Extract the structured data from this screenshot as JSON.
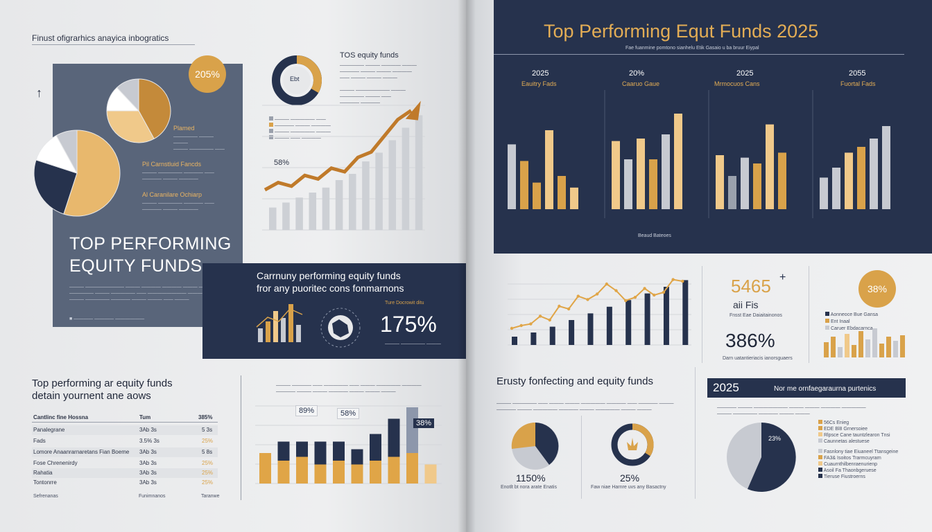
{
  "left_page": {
    "header_text": "Finust ofigrarhics anayica inbogratics",
    "hero": {
      "badge": "205%",
      "title_line1": "TOP PERFORMING",
      "title_line2": "EQUITY FUNDS",
      "legend": [
        {
          "label": "Plamed",
          "color": "#d9a24a"
        },
        {
          "label": "Pil Carnstluid Fancds",
          "color": "#d9a24a"
        },
        {
          "label": "Al Caranilare Ochiarp",
          "color": "#d9a24a"
        }
      ],
      "pie_small": [
        0.42,
        0.33,
        0.13,
        0.12
      ],
      "pie_large": [
        0.55,
        0.25,
        0.12,
        0.08
      ]
    },
    "donut_label": "Ebt",
    "trend_title": "TOS equity funds",
    "trend_percent": "58%",
    "trend_bars": [
      18,
      22,
      26,
      30,
      34,
      40,
      45,
      55,
      62,
      72,
      82,
      92
    ],
    "trend_line": [
      10,
      18,
      14,
      26,
      22,
      34,
      30,
      46,
      52,
      70,
      88,
      98
    ],
    "navy_panel": {
      "title_line1": "Carrnuny performing equity funds",
      "title_line2": "fror any puoritec cons fonmarnons",
      "mini_caption": "Ture Docrowit ditu",
      "percent": "175%",
      "bars": [
        20,
        30,
        45,
        35,
        55,
        25
      ]
    },
    "bottom": {
      "title_line1": "Top performing ar equity funds",
      "title_line2": "detain yournent ane aows",
      "table_header": {
        "col1": "Cantlinc fine Hossna",
        "col2": "Tum",
        "col3": "385%"
      },
      "rows": [
        {
          "col1": "Panalegrane",
          "col2": "3Ab 3s",
          "col3": "5 3s"
        },
        {
          "col1": "Fads",
          "col2": "3.5% 3s",
          "col3": "25%"
        },
        {
          "col1": "Lomore Anaanrarnaretans Fian Boeme",
          "col2": "3Ab 3s",
          "col3": "5 8s"
        },
        {
          "col1": "Fose Chrenenirdy",
          "col2": "3Ab 3s",
          "col3": "25%"
        },
        {
          "col1": "Rahatia",
          "col2": "3Ab 3s",
          "col3": "25%"
        },
        {
          "col1": "Tontonrre",
          "col2": "3Ab 3s",
          "col3": "25%"
        }
      ],
      "footer_labels": [
        "Sefrenanas",
        "Funimnanos",
        "Taranwe"
      ],
      "chart_labels": [
        "89%",
        "58%",
        "38%"
      ],
      "stacked": [
        {
          "navy": 0,
          "gold": 40
        },
        {
          "navy": 25,
          "gold": 30
        },
        {
          "navy": 20,
          "gold": 35
        },
        {
          "navy": 30,
          "gold": 25
        },
        {
          "navy": 25,
          "gold": 30
        },
        {
          "navy": 20,
          "gold": 25
        },
        {
          "navy": 35,
          "gold": 30
        },
        {
          "navy": 50,
          "gold": 35
        },
        {
          "navy": 60,
          "gold": 40
        },
        {
          "navy": 0,
          "gold": 25
        }
      ]
    }
  },
  "right_page": {
    "banner": {
      "title": "Top Performing Equt Funds 2025",
      "subtitle": "Fae fuanmine pomtono sianhelu Etik Gasaio u ba bruur Eiypal",
      "footer": "Beaud Bateoes",
      "panels": [
        {
          "year": "2025",
          "label": "Eauitry Fads",
          "bars": [
            {
              "v": 78,
              "c": "#c7cad1"
            },
            {
              "v": 58,
              "c": "#d9a24a"
            },
            {
              "v": 32,
              "c": "#d9a24a"
            },
            {
              "v": 95,
              "c": "#f0c98a"
            },
            {
              "v": 40,
              "c": "#d9a24a"
            },
            {
              "v": 26,
              "c": "#f0c98a"
            }
          ]
        },
        {
          "year": "20%",
          "label": "Caaruo Gaue",
          "bars": [
            {
              "v": 82,
              "c": "#f0c98a"
            },
            {
              "v": 60,
              "c": "#c7cad1"
            },
            {
              "v": 85,
              "c": "#f0c98a"
            },
            {
              "v": 60,
              "c": "#d9a24a"
            },
            {
              "v": 90,
              "c": "#c7cad1"
            },
            {
              "v": 115,
              "c": "#f0c98a"
            }
          ]
        },
        {
          "year": "2025",
          "label": "Mrmocuos Cans",
          "bars": [
            {
              "v": 65,
              "c": "#f0c98a"
            },
            {
              "v": 40,
              "c": "#9aa1ad"
            },
            {
              "v": 62,
              "c": "#c7cad1"
            },
            {
              "v": 55,
              "c": "#d9a24a"
            },
            {
              "v": 102,
              "c": "#f0c98a"
            },
            {
              "v": 68,
              "c": "#d9a24a"
            }
          ]
        },
        {
          "year": "2055",
          "label": "Fuortal Fads",
          "bars": [
            {
              "v": 38,
              "c": "#c7cad1"
            },
            {
              "v": 50,
              "c": "#c7cad1"
            },
            {
              "v": 68,
              "c": "#f0c98a"
            },
            {
              "v": 75,
              "c": "#d9a24a"
            },
            {
              "v": 85,
              "c": "#c7cad1"
            },
            {
              "v": 100,
              "c": "#c7cad1"
            }
          ]
        }
      ]
    },
    "middle": {
      "line_bars": [
        10,
        12,
        15,
        18,
        22,
        26,
        30,
        34,
        38,
        42,
        46,
        50,
        54,
        58,
        62,
        66,
        70,
        74,
        78
      ],
      "line_points": [
        30,
        35,
        38,
        52,
        45,
        70,
        65,
        88,
        82,
        92,
        110,
        98,
        80,
        86,
        102,
        90,
        95,
        118,
        115
      ],
      "big_number": "5465",
      "big_sub": "aii Fis",
      "big_caption": "Fnsst Eae Daiaitainonos",
      "pct2": "386%",
      "pct2_caption": "Darn uatantieriacis ianorsguaers",
      "badge": "38%",
      "mini_legend": [
        "Aonneoce Bue Gansa",
        "Ent Inaal",
        "Caruer Ebdacarnca"
      ],
      "mini_bars": [
        {
          "v": 22,
          "c": "#d9a24a"
        },
        {
          "v": 30,
          "c": "#d9a24a"
        },
        {
          "v": 15,
          "c": "#c7cad1"
        },
        {
          "v": 34,
          "c": "#f0c98a"
        },
        {
          "v": 18,
          "c": "#d9a24a"
        },
        {
          "v": 38,
          "c": "#d9a24a"
        },
        {
          "v": 26,
          "c": "#c7cad1"
        },
        {
          "v": 42,
          "c": "#c7cad1"
        },
        {
          "v": 20,
          "c": "#d9a24a"
        },
        {
          "v": 30,
          "c": "#d9a24a"
        },
        {
          "v": 24,
          "c": "#c7cad1"
        },
        {
          "v": 32,
          "c": "#d9a24a"
        }
      ]
    },
    "bottom": {
      "title": "Erusty fonfecting and equity funds",
      "pie1_pct": "1150%",
      "pie1_caption": "Enotlt bt nora arate Enatis",
      "donut_pct": "25%",
      "donut_caption": "Faw niae Harnre uvs any Basactny",
      "year_box": "2025",
      "year_box_text": "Nor me ornfaegaraurna purtenics",
      "pie_label": "23%",
      "legend": [
        {
          "label": "56Cs Enieg",
          "color": "#d9a24a"
        },
        {
          "label": "EDE Bl8 Grnersoiee",
          "color": "#d9a24a"
        },
        {
          "label": "Rlpsce Cane tauntzlearon Tnsi",
          "color": "#f0c98a"
        },
        {
          "label": "Caunnetas alestuese",
          "color": "#c7cad1"
        },
        {
          "label": "Fasnlony tiae Eiuaneel Ttansgeine",
          "color": "#c7cad1"
        },
        {
          "label": "FA3& Isoitos Trarmcuyrarn",
          "color": "#d9a24a"
        },
        {
          "label": "Cuaurnthilbenraenurienp",
          "color": "#f0c98a"
        },
        {
          "label": "Asoil Fa Thaonbgeruese",
          "color": "#26324d"
        },
        {
          "label": "Tieruse Fiustroerns",
          "color": "#26324d"
        }
      ]
    }
  }
}
